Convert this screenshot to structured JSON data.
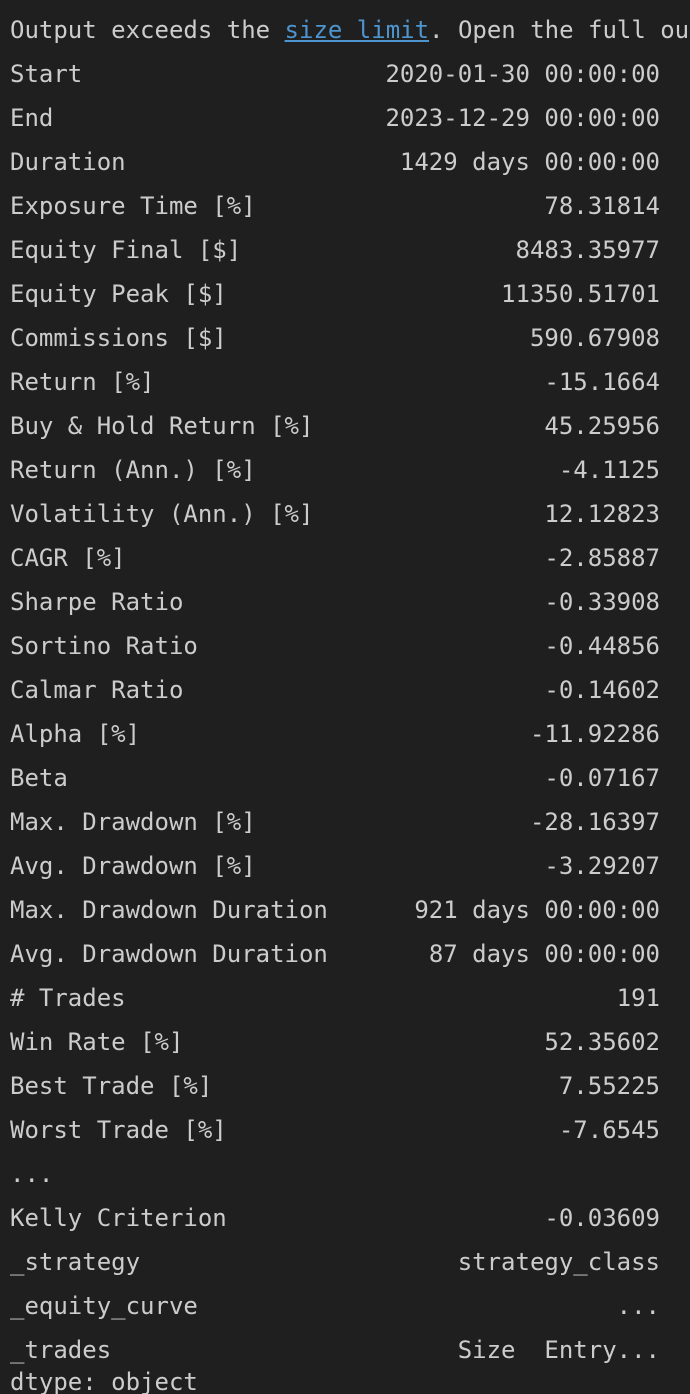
{
  "notice": {
    "prefix": "Output exceeds the ",
    "link": "size limit",
    "suffix": ". Open the full ou"
  },
  "rows": [
    {
      "key": "Start",
      "value": "2020-01-30 00:00:00"
    },
    {
      "key": "End",
      "value": "2023-12-29 00:00:00"
    },
    {
      "key": "Duration",
      "value": "1429 days 00:00:00"
    },
    {
      "key": "Exposure Time [%]",
      "value": "78.31814"
    },
    {
      "key": "Equity Final [$]",
      "value": "8483.35977"
    },
    {
      "key": "Equity Peak [$]",
      "value": "11350.51701"
    },
    {
      "key": "Commissions [$]",
      "value": "590.67908"
    },
    {
      "key": "Return [%]",
      "value": "-15.1664"
    },
    {
      "key": "Buy & Hold Return [%]",
      "value": "45.25956"
    },
    {
      "key": "Return (Ann.) [%]",
      "value": "-4.1125"
    },
    {
      "key": "Volatility (Ann.) [%]",
      "value": "12.12823"
    },
    {
      "key": "CAGR [%]",
      "value": "-2.85887"
    },
    {
      "key": "Sharpe Ratio",
      "value": "-0.33908"
    },
    {
      "key": "Sortino Ratio",
      "value": "-0.44856"
    },
    {
      "key": "Calmar Ratio",
      "value": "-0.14602"
    },
    {
      "key": "Alpha [%]",
      "value": "-11.92286"
    },
    {
      "key": "Beta",
      "value": "-0.07167"
    },
    {
      "key": "Max. Drawdown [%]",
      "value": "-28.16397"
    },
    {
      "key": "Avg. Drawdown [%]",
      "value": "-3.29207"
    },
    {
      "key": "Max. Drawdown Duration",
      "value": "921 days 00:00:00"
    },
    {
      "key": "Avg. Drawdown Duration",
      "value": "87 days 00:00:00"
    },
    {
      "key": "# Trades",
      "value": "191"
    },
    {
      "key": "Win Rate [%]",
      "value": "52.35602"
    },
    {
      "key": "Best Trade [%]",
      "value": "7.55225"
    },
    {
      "key": "Worst Trade [%]",
      "value": "-7.6545"
    },
    {
      "key": "...",
      "value": ""
    },
    {
      "key": "Kelly Criterion",
      "value": "-0.03609"
    },
    {
      "key": "_strategy",
      "value": "strategy_class"
    },
    {
      "key": "_equity_curve",
      "value": "..."
    },
    {
      "key": "_trades",
      "value": "Size  Entry..."
    }
  ],
  "tail": "dtype: object"
}
